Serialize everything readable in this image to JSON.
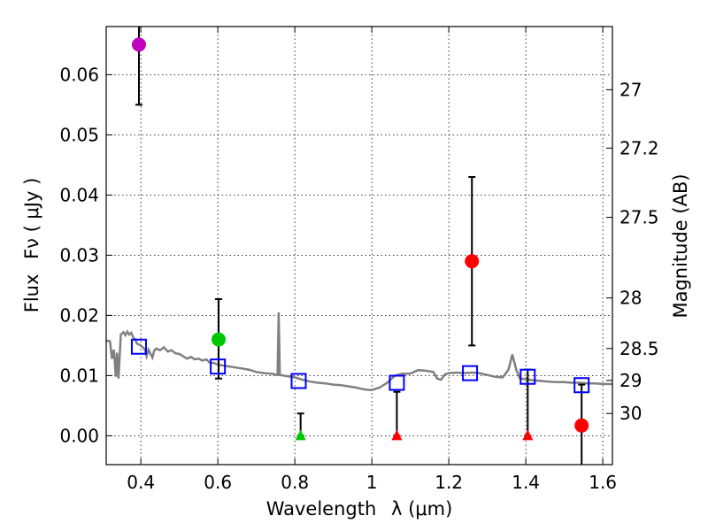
{
  "chart_data": {
    "type": "scatter",
    "xlabel_main": "Wavelength",
    "xlabel_math": "λ (μm)",
    "ylabel_main": "Flux",
    "ylabel_math": "Fν  ( μJy )",
    "ylabel_right": "Magnitude (AB)",
    "xlim": [
      0.31,
      1.625
    ],
    "ylim": [
      -0.0048,
      0.068
    ],
    "grid": true,
    "x_ticks": [
      {
        "value": 0.4,
        "label": "0.4"
      },
      {
        "value": 0.6,
        "label": "0.6"
      },
      {
        "value": 0.8,
        "label": "0.8"
      },
      {
        "value": 1.0,
        "label": "1"
      },
      {
        "value": 1.2,
        "label": "1.2"
      },
      {
        "value": 1.4,
        "label": "1.4"
      },
      {
        "value": 1.6,
        "label": "1.6"
      }
    ],
    "y_ticks": [
      {
        "value": 0.0,
        "label": "0.00"
      },
      {
        "value": 0.01,
        "label": "0.01"
      },
      {
        "value": 0.02,
        "label": "0.02"
      },
      {
        "value": 0.03,
        "label": "0.03"
      },
      {
        "value": 0.04,
        "label": "0.04"
      },
      {
        "value": 0.05,
        "label": "0.05"
      },
      {
        "value": 0.06,
        "label": "0.06"
      }
    ],
    "right_ticks": [
      {
        "flux": 0.0575,
        "label": "27"
      },
      {
        "flux": 0.0478,
        "label": "27.2"
      },
      {
        "flux": 0.0363,
        "label": "27.5"
      },
      {
        "flux": 0.0229,
        "label": "28"
      },
      {
        "flux": 0.0145,
        "label": "28.5"
      },
      {
        "flux": 0.0092,
        "label": "29"
      },
      {
        "flux": 0.0037,
        "label": "30"
      }
    ],
    "observed_points": [
      {
        "x": 0.395,
        "y": 0.065,
        "err_low": 0.055,
        "err_high": 0.0685,
        "color": "#bf00bf",
        "marker": "circle"
      },
      {
        "x": 0.602,
        "y": 0.016,
        "err_low": 0.0095,
        "err_high": 0.0227,
        "color": "#00c800",
        "marker": "circle"
      },
      {
        "x": 0.815,
        "y": 0.0,
        "err_low": 0.0,
        "err_high": 0.0037,
        "color": "#00c800",
        "marker": "triangle"
      },
      {
        "x": 1.065,
        "y": 0.0,
        "err_low": 0.0,
        "err_high": 0.0073,
        "color": "#ff0000",
        "marker": "triangle"
      },
      {
        "x": 1.26,
        "y": 0.029,
        "err_low": 0.015,
        "err_high": 0.043,
        "color": "#ff0000",
        "marker": "circle"
      },
      {
        "x": 1.405,
        "y": 0.0,
        "err_low": 0.0,
        "err_high": 0.011,
        "color": "#ff0000",
        "marker": "triangle"
      },
      {
        "x": 1.545,
        "y": 0.0017,
        "err_low": -0.0048,
        "err_high": 0.0085,
        "color": "#ff0000",
        "marker": "circle"
      }
    ],
    "model_points": [
      {
        "x": 0.395,
        "y": 0.0148
      },
      {
        "x": 0.6,
        "y": 0.0115
      },
      {
        "x": 0.81,
        "y": 0.0091
      },
      {
        "x": 1.065,
        "y": 0.0088
      },
      {
        "x": 1.255,
        "y": 0.0104
      },
      {
        "x": 1.405,
        "y": 0.0098
      },
      {
        "x": 1.545,
        "y": 0.0084
      }
    ],
    "model_spectrum": [
      [
        0.31,
        0.0158
      ],
      [
        0.32,
        0.0157
      ],
      [
        0.325,
        0.0128
      ],
      [
        0.33,
        0.0143
      ],
      [
        0.335,
        0.0098
      ],
      [
        0.338,
        0.0138
      ],
      [
        0.342,
        0.0095
      ],
      [
        0.348,
        0.0168
      ],
      [
        0.355,
        0.0172
      ],
      [
        0.36,
        0.0167
      ],
      [
        0.365,
        0.0173
      ],
      [
        0.37,
        0.0168
      ],
      [
        0.375,
        0.0171
      ],
      [
        0.38,
        0.0164
      ],
      [
        0.385,
        0.016
      ],
      [
        0.39,
        0.0153
      ],
      [
        0.4,
        0.015
      ],
      [
        0.41,
        0.0144
      ],
      [
        0.415,
        0.0132
      ],
      [
        0.42,
        0.0143
      ],
      [
        0.43,
        0.013
      ],
      [
        0.435,
        0.0142
      ],
      [
        0.44,
        0.0145
      ],
      [
        0.45,
        0.0142
      ],
      [
        0.46,
        0.0147
      ],
      [
        0.47,
        0.014
      ],
      [
        0.48,
        0.0142
      ],
      [
        0.49,
        0.0137
      ],
      [
        0.5,
        0.0136
      ],
      [
        0.51,
        0.0132
      ],
      [
        0.52,
        0.0128
      ],
      [
        0.53,
        0.0131
      ],
      [
        0.54,
        0.0127
      ],
      [
        0.55,
        0.0128
      ],
      [
        0.56,
        0.0125
      ],
      [
        0.57,
        0.0127
      ],
      [
        0.58,
        0.0121
      ],
      [
        0.59,
        0.0121
      ],
      [
        0.6,
        0.0118
      ],
      [
        0.62,
        0.0116
      ],
      [
        0.64,
        0.0114
      ],
      [
        0.66,
        0.0112
      ],
      [
        0.68,
        0.011
      ],
      [
        0.7,
        0.0106
      ],
      [
        0.72,
        0.0104
      ],
      [
        0.74,
        0.0103
      ],
      [
        0.755,
        0.0101
      ],
      [
        0.758,
        0.0205
      ],
      [
        0.761,
        0.0101
      ],
      [
        0.78,
        0.0099
      ],
      [
        0.8,
        0.0097
      ],
      [
        0.82,
        0.0093
      ],
      [
        0.84,
        0.009
      ],
      [
        0.86,
        0.0088
      ],
      [
        0.88,
        0.0087
      ],
      [
        0.9,
        0.0085
      ],
      [
        0.92,
        0.0084
      ],
      [
        0.94,
        0.0082
      ],
      [
        0.96,
        0.008
      ],
      [
        0.98,
        0.0077
      ],
      [
        1.0,
        0.0076
      ],
      [
        1.02,
        0.008
      ],
      [
        1.04,
        0.0088
      ],
      [
        1.06,
        0.01
      ],
      [
        1.08,
        0.0103
      ],
      [
        1.1,
        0.0103
      ],
      [
        1.12,
        0.0109
      ],
      [
        1.14,
        0.0108
      ],
      [
        1.16,
        0.0106
      ],
      [
        1.17,
        0.0095
      ],
      [
        1.18,
        0.0093
      ],
      [
        1.19,
        0.0102
      ],
      [
        1.2,
        0.0104
      ],
      [
        1.22,
        0.0105
      ],
      [
        1.24,
        0.0104
      ],
      [
        1.26,
        0.0105
      ],
      [
        1.28,
        0.0104
      ],
      [
        1.3,
        0.0101
      ],
      [
        1.32,
        0.0098
      ],
      [
        1.34,
        0.0097
      ],
      [
        1.355,
        0.011
      ],
      [
        1.365,
        0.0135
      ],
      [
        1.375,
        0.011
      ],
      [
        1.385,
        0.0095
      ],
      [
        1.4,
        0.0094
      ],
      [
        1.42,
        0.0092
      ],
      [
        1.44,
        0.0091
      ],
      [
        1.46,
        0.009
      ],
      [
        1.48,
        0.0089
      ],
      [
        1.5,
        0.0089
      ],
      [
        1.52,
        0.0088
      ],
      [
        1.54,
        0.0088
      ],
      [
        1.56,
        0.0087
      ],
      [
        1.58,
        0.0087
      ],
      [
        1.6,
        0.0086
      ],
      [
        1.625,
        0.0086
      ]
    ],
    "colors": {
      "spectrum": "#808080",
      "model_marker": "#0000ff",
      "error_bar": "#000000",
      "grid": "#000000"
    }
  }
}
